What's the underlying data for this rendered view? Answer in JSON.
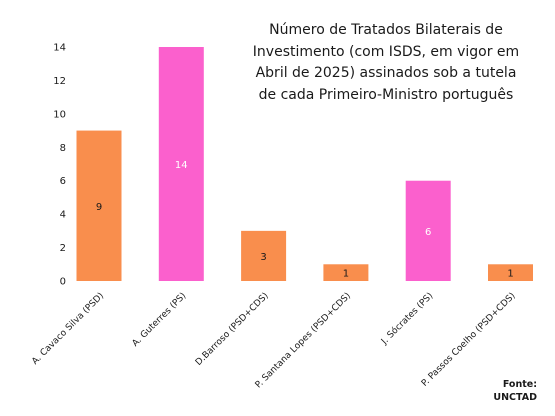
{
  "chart_data": {
    "type": "bar",
    "title": "Número de Tratados Bilaterais de\nInvestimento (com ISDS, em vigor em\nAbril de 2025) assinados sob a tutela\nde cada Primeiro-Ministro português",
    "categories": [
      "A. Cavaco Silva (PSD)",
      "A. Guterres (PS)",
      "D.Barroso (PSD+CDS)",
      "P. Santana Lopes (PSD+CDS)",
      "J. Sócrates (PS)",
      "P. Passos Coelho (PSD+CDS)"
    ],
    "values": [
      9,
      14,
      3,
      1,
      6,
      1
    ],
    "data_labels": [
      "9",
      "14",
      "3",
      "1",
      "6",
      "1"
    ],
    "colors": [
      "#f98e4d",
      "#fb60cd",
      "#f98e4d",
      "#f98e4d",
      "#fb60cd",
      "#f98e4d"
    ],
    "label_colors": [
      "#1a1a1a",
      "#ffffff",
      "#1a1a1a",
      "#1a1a1a",
      "#ffffff",
      "#1a1a1a"
    ],
    "ylim": [
      0,
      14
    ],
    "yticks": [
      0,
      2,
      4,
      6,
      8,
      10,
      12,
      14
    ],
    "ytick_labels": [
      "0",
      "2",
      "4",
      "6",
      "8",
      "10",
      "12",
      "14"
    ],
    "xlabel": "",
    "ylabel": "",
    "grid": false,
    "legend": false
  },
  "source": {
    "label": "Fonte:",
    "name": "UNCTAD"
  }
}
